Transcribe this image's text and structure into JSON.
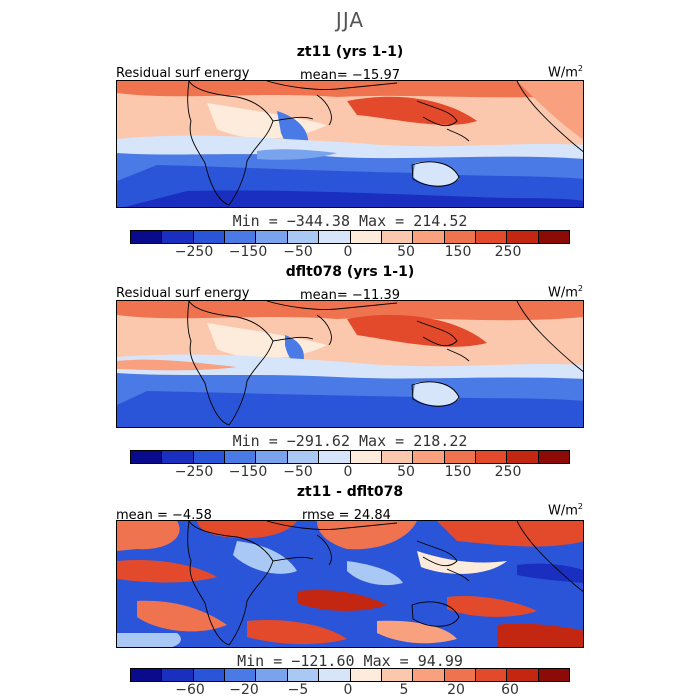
{
  "figure_title": "JJA",
  "units_base": "W/m",
  "units_exp": "2",
  "palette": [
    "#0a0a8c",
    "#1a2fbf",
    "#2b55d8",
    "#4a7ae6",
    "#7aa3ee",
    "#a9c8f4",
    "#d6e5fa",
    "#fdebdc",
    "#fcc8ad",
    "#f9a07f",
    "#f07350",
    "#e34a2c",
    "#c32712",
    "#8c0b06"
  ],
  "panels": [
    {
      "title": "zt11 (yrs 1-1)",
      "left_label": "Residual surf energy",
      "center_label": "mean= −15.97",
      "minmax": "Min = −344.38 Max = 214.52",
      "ticks": [
        "−250",
        "−150",
        "−50",
        "0",
        "50",
        "150",
        "250"
      ]
    },
    {
      "title": "dflt078 (yrs 1-1)",
      "left_label": "Residual surf energy",
      "center_label": "mean= −11.39",
      "minmax": "Min = −291.62 Max = 218.22",
      "ticks": [
        "−250",
        "−150",
        "−50",
        "0",
        "50",
        "150",
        "250"
      ]
    },
    {
      "title": "zt11 - dflt078",
      "left_label": "mean = −4.58",
      "center_label": "rmse = 24.84",
      "minmax": "Min = −121.60 Max = 94.99",
      "ticks": [
        "−60",
        "−20",
        "−5",
        "0",
        "5",
        "20",
        "60"
      ]
    }
  ]
}
